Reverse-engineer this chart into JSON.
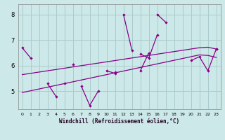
{
  "xlabel": "Windchill (Refroidissement éolien,°C)",
  "background_color": "#cce8e8",
  "grid_color": "#aacccc",
  "line_color": "#880088",
  "x": [
    0,
    1,
    2,
    3,
    4,
    5,
    6,
    7,
    8,
    9,
    10,
    11,
    12,
    13,
    14,
    15,
    16,
    17,
    18,
    19,
    20,
    21,
    22,
    23
  ],
  "series_upper": [
    6.7,
    6.3,
    null,
    null,
    null,
    null,
    6.05,
    null,
    null,
    null,
    null,
    null,
    8.0,
    6.6,
    null,
    null,
    8.0,
    7.7,
    null,
    null,
    null,
    null,
    null,
    6.65
  ],
  "series_lower": [
    null,
    null,
    null,
    5.3,
    4.8,
    null,
    null,
    5.2,
    4.45,
    5.0,
    null,
    5.75,
    null,
    null,
    5.8,
    6.5,
    null,
    null,
    null,
    null,
    null,
    null,
    null,
    null
  ],
  "series_mid1": [
    null,
    null,
    null,
    null,
    null,
    null,
    null,
    null,
    null,
    null,
    null,
    null,
    null,
    null,
    6.45,
    6.3,
    7.2,
    null,
    null,
    null,
    6.2,
    6.35,
    5.8,
    6.65
  ],
  "series_mid2": [
    null,
    null,
    null,
    null,
    null,
    5.3,
    null,
    null,
    null,
    null,
    5.8,
    5.7,
    null,
    null,
    null,
    null,
    null,
    null,
    null,
    null,
    null,
    null,
    null,
    null
  ],
  "trend_high": [
    5.65,
    5.7,
    5.75,
    5.8,
    5.85,
    5.9,
    5.95,
    6.0,
    6.05,
    6.1,
    6.15,
    6.2,
    6.25,
    6.3,
    6.35,
    6.4,
    6.45,
    6.5,
    6.55,
    6.6,
    6.65,
    6.7,
    6.72,
    6.65
  ],
  "trend_low": [
    4.95,
    5.02,
    5.09,
    5.16,
    5.23,
    5.3,
    5.37,
    5.44,
    5.51,
    5.58,
    5.65,
    5.72,
    5.79,
    5.86,
    5.93,
    6.0,
    6.07,
    6.14,
    6.21,
    6.28,
    6.35,
    6.42,
    6.4,
    6.32
  ],
  "ylim": [
    4.3,
    8.4
  ],
  "xlim": [
    -0.5,
    23.5
  ],
  "yticks": [
    5,
    6,
    7,
    8
  ],
  "xticks": [
    0,
    1,
    2,
    3,
    4,
    5,
    6,
    7,
    8,
    9,
    10,
    11,
    12,
    13,
    14,
    15,
    16,
    17,
    18,
    19,
    20,
    21,
    22,
    23
  ]
}
